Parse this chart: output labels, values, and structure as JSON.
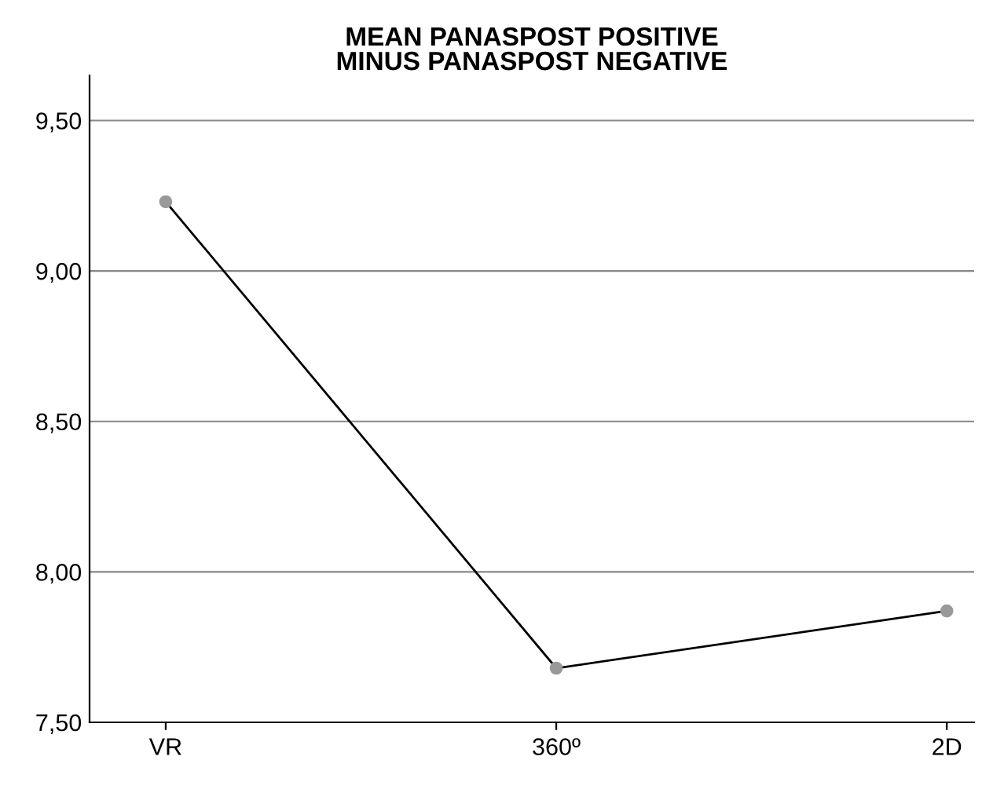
{
  "chart_data": {
    "type": "line",
    "title": "MEAN PANASPOST POSITIVE\nMINUS PANASPOST NEGATIVE",
    "categories": [
      "VR",
      "360º",
      "2D"
    ],
    "series": [
      {
        "color": "#000000",
        "values": [
          9.23,
          7.68,
          7.87
        ]
      }
    ],
    "marker": "circle",
    "line_style": "solid",
    "grid": "y",
    "legend": false,
    "ylim": [
      7.5,
      9.65
    ],
    "yticks": [
      {
        "value": 7.5,
        "label": "7,50"
      },
      {
        "value": 8.0,
        "label": "8,00"
      },
      {
        "value": 8.5,
        "label": "8,50"
      },
      {
        "value": 9.0,
        "label": "9,00"
      },
      {
        "value": 9.5,
        "label": "9,50"
      }
    ]
  }
}
